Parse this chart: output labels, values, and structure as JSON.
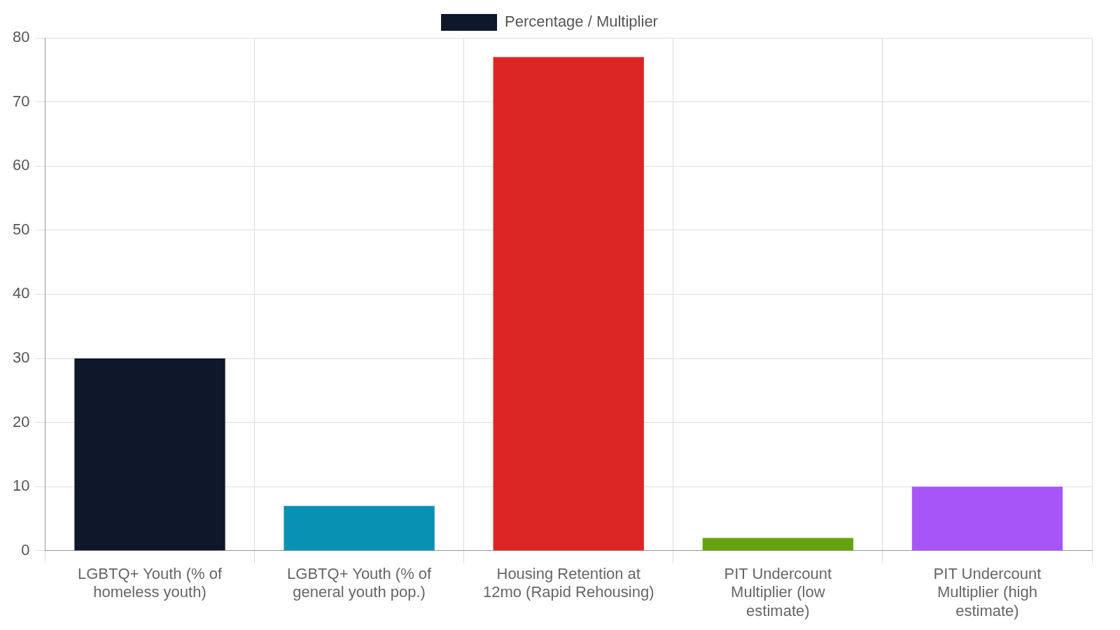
{
  "chart_data": {
    "type": "bar",
    "categories": [
      "LGBTQ+ Youth (% of homeless youth)",
      "LGBTQ+ Youth (% of general youth pop.)",
      "Housing Retention at 12mo (Rapid Rehousing)",
      "PIT Undercount Multiplier (low estimate)",
      "PIT Undercount Multiplier (high estimate)"
    ],
    "series": [
      {
        "name": "Percentage / Multiplier",
        "colors": [
          "#0f172a",
          "#0891b2",
          "#dc2626",
          "#65a30d",
          "#a855f7"
        ],
        "values": [
          30,
          7,
          77,
          2,
          10
        ]
      }
    ],
    "ylim": [
      0,
      80
    ],
    "yticks": [
      0,
      10,
      20,
      30,
      40,
      50,
      60,
      70,
      80
    ],
    "grid": true,
    "legend": "top"
  }
}
